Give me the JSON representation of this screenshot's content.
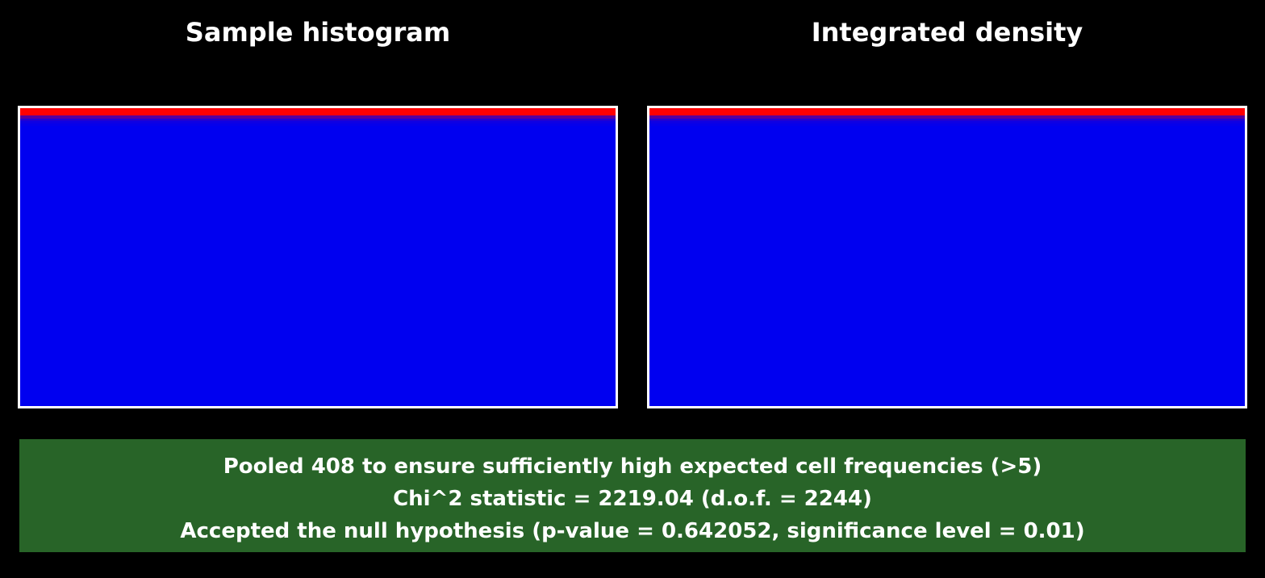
{
  "panels": [
    {
      "title": "Sample histogram"
    },
    {
      "title": "Integrated density"
    }
  ],
  "stats": {
    "line1": "Pooled 408 to ensure sufficiently high expected cell frequencies (>5)",
    "line2": "Chi^2 statistic = 2219.04 (d.o.f. = 2244)",
    "line3": "Accepted the null hypothesis (p-value = 0.642052, significance level = 0.01)"
  },
  "colors": {
    "background": "#000000",
    "stats_background": "#286428",
    "frame": "#ffffff",
    "low": "#0000f0",
    "high": "#ff0000"
  },
  "chart_data": [
    {
      "type": "heatmap",
      "title": "Sample histogram",
      "colormap": [
        "#0000f0",
        "#ff0000"
      ],
      "rows": [
        1.0,
        0.35,
        0.12,
        0.05,
        0.02,
        0.0
      ],
      "grid": false
    },
    {
      "type": "heatmap",
      "title": "Integrated density",
      "colormap": [
        "#0000f0",
        "#ff0000"
      ],
      "rows": [
        1.0,
        0.35,
        0.12,
        0.05,
        0.02,
        0.0
      ],
      "grid": false
    }
  ]
}
